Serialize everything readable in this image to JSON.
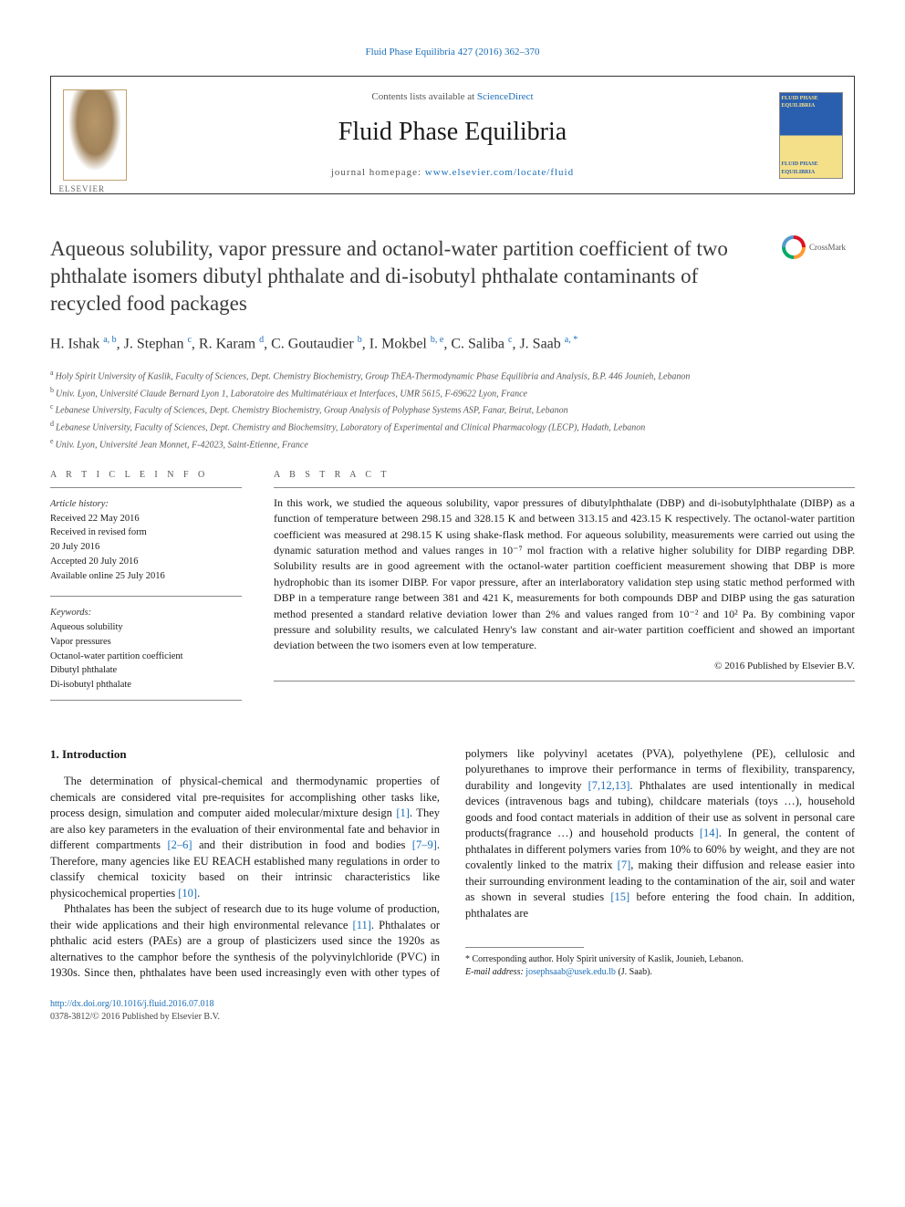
{
  "top_link": "Fluid Phase Equilibria 427 (2016) 362–370",
  "header": {
    "contents_prefix": "Contents lists available at ",
    "contents_link": "ScienceDirect",
    "journal_name": "Fluid Phase Equilibria",
    "homepage_prefix": "journal homepage: ",
    "homepage_link": "www.elsevier.com/locate/fluid",
    "cover_text_top": "FLUID PHASE\nEQUILIBRIA",
    "cover_text_bottom": "FLUID PHASE\nEQUILIBRIA",
    "elsevier_label": "ELSEVIER"
  },
  "crossmark_label": "CrossMark",
  "title": "Aqueous solubility, vapor pressure and octanol-water partition coefficient of two phthalate isomers dibutyl phthalate and di-isobutyl phthalate contaminants of recycled food packages",
  "authors_html": "H. Ishak <sup>a, b</sup>, J. Stephan <sup>c</sup>, R. Karam <sup>d</sup>, C. Goutaudier <sup>b</sup>, I. Mokbel <sup>b, e</sup>, C. Saliba <sup>c</sup>, J. Saab <sup>a, <span class='ast'>*</span></sup>",
  "affiliations": [
    {
      "sup": "a",
      "text": "Holy Spirit University of Kaslik, Faculty of Sciences, Dept. Chemistry Biochemistry, Group ThEA-Thermodynamic Phase Equilibria and Analysis, B.P. 446 Jounieh, Lebanon"
    },
    {
      "sup": "b",
      "text": "Univ. Lyon, Université Claude Bernard Lyon 1, Laboratoire des Multimatériaux et Interfaces, UMR 5615, F-69622 Lyon, France"
    },
    {
      "sup": "c",
      "text": "Lebanese University, Faculty of Sciences, Dept. Chemistry Biochemistry, Group Analysis of Polyphase Systems ASP, Fanar, Beirut, Lebanon"
    },
    {
      "sup": "d",
      "text": "Lebanese University, Faculty of Sciences, Dept. Chemistry and Biochemsitry, Laboratory of Experimental and Clinical Pharmacology (LECP), Hadath, Lebanon"
    },
    {
      "sup": "e",
      "text": "Univ. Lyon, Université Jean Monnet, F-42023, Saint-Etienne, France"
    }
  ],
  "article_info": {
    "heading": "A R T I C L E   I N F O",
    "history_label": "Article history:",
    "received": "Received 22 May 2016",
    "revised": "Received in revised form\n20 July 2016",
    "accepted": "Accepted 20 July 2016",
    "online": "Available online 25 July 2016",
    "keywords_label": "Keywords:",
    "keywords": [
      "Aqueous solubility",
      "Vapor pressures",
      "Octanol-water partition coefficient",
      "Dibutyl phthalate",
      "Di-isobutyl phthalate"
    ]
  },
  "abstract": {
    "heading": "A B S T R A C T",
    "text": "In this work, we studied the aqueous solubility, vapor pressures of dibutylphthalate (DBP) and di-isobutylphthalate (DIBP) as a function of temperature between 298.15 and 328.15 K and between 313.15 and 423.15 K respectively. The octanol-water partition coefficient was measured at 298.15 K using shake-flask method. For aqueous solubility, measurements were carried out using the dynamic saturation method and values ranges in 10⁻⁷ mol fraction with a relative higher solubility for DIBP regarding DBP. Solubility results are in good agreement with the octanol-water partition coefficient measurement showing that DBP is more hydrophobic than its isomer DIBP. For vapor pressure, after an interlaboratory validation step using static method performed with DBP in a temperature range between 381 and 421 K, measurements for both compounds DBP and DIBP using the gas saturation method presented a standard relative deviation lower than 2% and values ranged from 10⁻² and 10² Pa. By combining vapor pressure and solubility results, we calculated Henry's law constant and air-water partition coefficient and showed an important deviation between the two isomers even at low temperature.",
    "copyright": "© 2016 Published by Elsevier B.V."
  },
  "section1": {
    "heading": "1. Introduction",
    "paragraphs": [
      "The determination of physical-chemical and thermodynamic properties of chemicals are considered vital pre-requisites for accomplishing other tasks like, process design, simulation and computer aided molecular/mixture design <span class='ref'>[1]</span>. They are also key parameters in the evaluation of their environmental fate and behavior in different compartments <span class='ref'>[2–6]</span> and their distribution in food and bodies <span class='ref'>[7–9]</span>. Therefore, many agencies like EU REACH established many regulations in order to classify chemical toxicity based on their intrinsic characteristics like physicochemical properties <span class='ref'>[10]</span>.",
      "Phthalates has been the subject of research due to its huge volume of production, their wide applications and their high environmental relevance <span class='ref'>[11]</span>. Phthalates or phthalic acid esters (PAEs) are a group of plasticizers used since the 1920s as alternatives to the camphor before the synthesis of the polyvinylchloride (PVC) in 1930s. Since then, phthalates have been used increasingly even with other types of polymers like polyvinyl acetates (PVA), polyethylene (PE), cellulosic and polyurethanes to improve their performance in terms of flexibility, transparency, durability and longevity <span class='ref'>[7,12,13]</span>. Phthalates are used intentionally in medical devices (intravenous bags and tubing), childcare materials (toys …), household goods and food contact materials in addition of their use as solvent in personal care products(fragrance …) and household products <span class='ref'>[14]</span>. In general, the content of phthalates in different polymers varies from 10% to 60% by weight, and they are not covalently linked to the matrix <span class='ref'>[7]</span>, making their diffusion and release easier into their surrounding environment leading to the contamination of the air, soil and water as shown in several studies <span class='ref'>[15]</span> before entering the food chain. In addition, phthalates are"
    ]
  },
  "footnote": {
    "corr": "* Corresponding author. Holy Spirit university of Kaslik, Jounieh, Lebanon.",
    "email_label": "E-mail address: ",
    "email": "josephsaab@usek.edu.lb",
    "email_suffix": " (J. Saab)."
  },
  "bottom": {
    "doi": "http://dx.doi.org/10.1016/j.fluid.2016.07.018",
    "issn_copy": "0378-3812/© 2016 Published by Elsevier B.V."
  },
  "colors": {
    "link": "#1a6eb8",
    "text": "#1a1a1a",
    "muted": "#555555",
    "rule": "#888888"
  }
}
